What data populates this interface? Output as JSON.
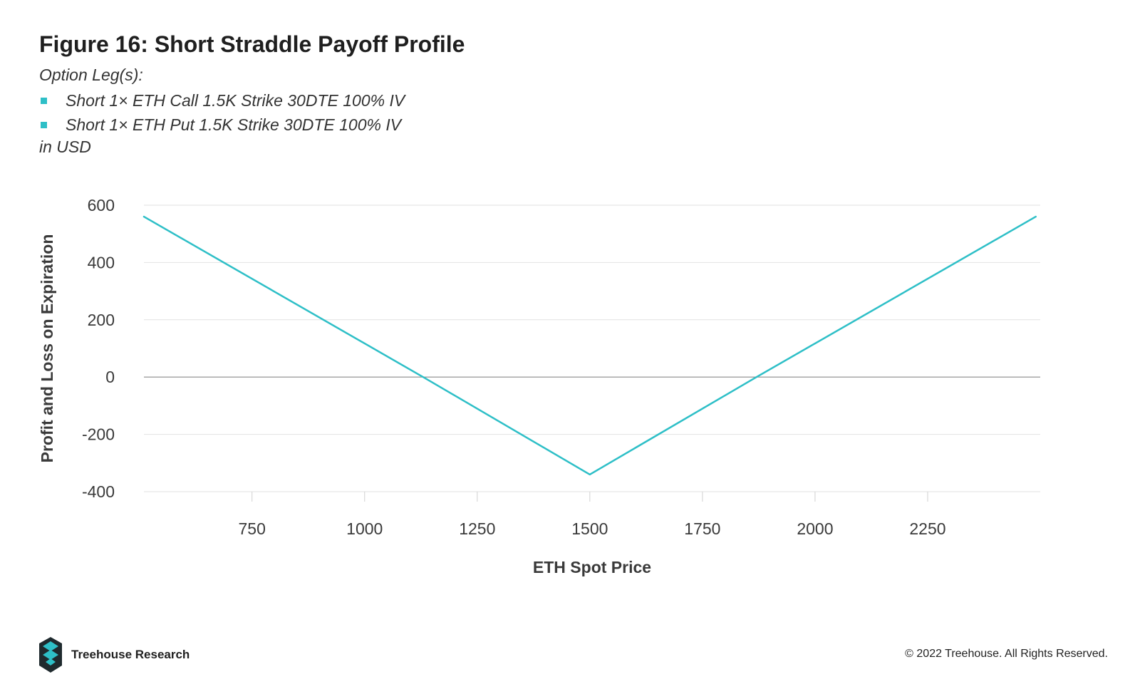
{
  "figure": {
    "title": "Figure 16: Short Straddle Payoff Profile",
    "subtitle": "Option Leg(s):",
    "legs": [
      "Short 1× ETH Call 1.5K Strike 30DTE 100% IV",
      "Short 1× ETH Put 1.5K Strike 30DTE 100% IV"
    ],
    "unit_note": "in USD",
    "accent_color": "#2ebfc7"
  },
  "chart_data": {
    "type": "line",
    "xlabel": "ETH Spot Price",
    "ylabel": "Profit and Loss on Expiration",
    "xlim": [
      510,
      2500
    ],
    "ylim": [
      -400,
      600
    ],
    "xticks": [
      750,
      1000,
      1250,
      1500,
      1750,
      2000,
      2250
    ],
    "yticks": [
      600,
      400,
      200,
      0,
      -200,
      -400
    ],
    "grid": true,
    "series": [
      {
        "color": "#2ebfc7",
        "points": [
          [
            510,
            560
          ],
          [
            1130,
            0
          ],
          [
            1500,
            -340
          ],
          [
            1870,
            0
          ],
          [
            2490,
            560
          ]
        ]
      }
    ]
  },
  "footer": {
    "brand": "Treehouse Research",
    "copyright": "© 2022 Treehouse. All Rights Reserved."
  }
}
